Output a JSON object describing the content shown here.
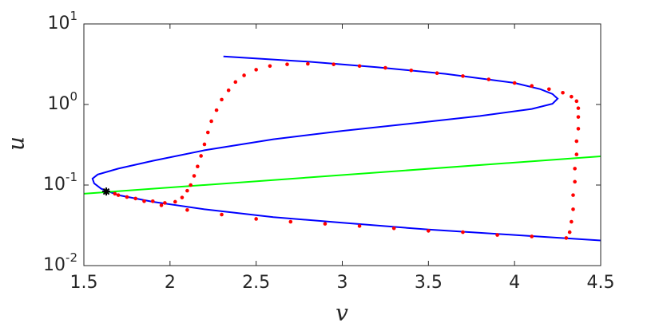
{
  "chart_data": {
    "type": "line",
    "log_y": true,
    "xlabel": "v",
    "ylabel": "u",
    "xlim": [
      1.5,
      4.5
    ],
    "xticks": [
      1.5,
      2,
      2.5,
      3,
      3.5,
      4,
      4.5
    ],
    "ylim": [
      0.01,
      10
    ],
    "yticks": [
      {
        "value": 0.01,
        "label": "10",
        "exponent": "-2"
      },
      {
        "value": 0.1,
        "label": "10",
        "exponent": "-1"
      },
      {
        "value": 1,
        "label": "10",
        "exponent": "0"
      },
      {
        "value": 10,
        "label": "10",
        "exponent": "1"
      }
    ],
    "series": [
      {
        "color": "#0000ff",
        "style": "line",
        "x": [
          2.31,
          2.8,
          3.2,
          3.6,
          4.0,
          4.15,
          4.22,
          4.25,
          4.22,
          4.1,
          3.8,
          3.4,
          3.0,
          2.6,
          2.2,
          1.9,
          1.7,
          1.58,
          1.55,
          1.56,
          1.6,
          1.7,
          1.9,
          2.2,
          2.6,
          3.0,
          3.5,
          4.0,
          4.5
        ],
        "values": [
          3.95,
          3.4,
          2.9,
          2.4,
          1.85,
          1.55,
          1.35,
          1.18,
          1.02,
          0.88,
          0.72,
          0.58,
          0.47,
          0.37,
          0.27,
          0.2,
          0.16,
          0.135,
          0.12,
          0.105,
          0.09,
          0.075,
          0.062,
          0.05,
          0.04,
          0.034,
          0.028,
          0.024,
          0.0205
        ]
      },
      {
        "color": "#00ff00",
        "style": "line",
        "x": [
          1.5,
          4.5
        ],
        "values": [
          0.078,
          0.227
        ]
      },
      {
        "color": "#ff0000",
        "style": "dots",
        "x": [
          1.63,
          1.7,
          1.8,
          1.9,
          1.97,
          2.03,
          2.07,
          2.1,
          2.12,
          2.14,
          2.16,
          2.18,
          2.2,
          2.22,
          2.24,
          2.27,
          2.3,
          2.34,
          2.38,
          2.43,
          2.5,
          2.58,
          2.68,
          2.8,
          2.95,
          3.1,
          3.25,
          3.4,
          3.55,
          3.7,
          3.85,
          4.0,
          4.1,
          4.2,
          4.28,
          4.33,
          4.36,
          4.37,
          4.37,
          4.37,
          4.36,
          4.36,
          4.35,
          4.35,
          4.34,
          4.34,
          4.33,
          4.32,
          4.3,
          4.1,
          3.9,
          3.7,
          3.5,
          3.3,
          3.1,
          2.9,
          2.7,
          2.5,
          2.3,
          2.1,
          1.95,
          1.85,
          1.75,
          1.68
        ],
        "values": [
          0.083,
          0.075,
          0.068,
          0.063,
          0.06,
          0.062,
          0.07,
          0.085,
          0.1,
          0.13,
          0.17,
          0.23,
          0.32,
          0.45,
          0.62,
          0.85,
          1.15,
          1.5,
          1.9,
          2.3,
          2.7,
          3.0,
          3.15,
          3.2,
          3.15,
          3.0,
          2.85,
          2.65,
          2.45,
          2.25,
          2.05,
          1.85,
          1.7,
          1.55,
          1.4,
          1.25,
          1.1,
          0.9,
          0.7,
          0.5,
          0.35,
          0.24,
          0.16,
          0.11,
          0.075,
          0.05,
          0.035,
          0.026,
          0.022,
          0.023,
          0.024,
          0.026,
          0.027,
          0.029,
          0.031,
          0.033,
          0.035,
          0.038,
          0.043,
          0.049,
          0.056,
          0.063,
          0.071,
          0.078
        ]
      },
      {
        "color": "#000000",
        "style": "star",
        "x": [
          1.63
        ],
        "values": [
          0.083
        ]
      }
    ]
  }
}
